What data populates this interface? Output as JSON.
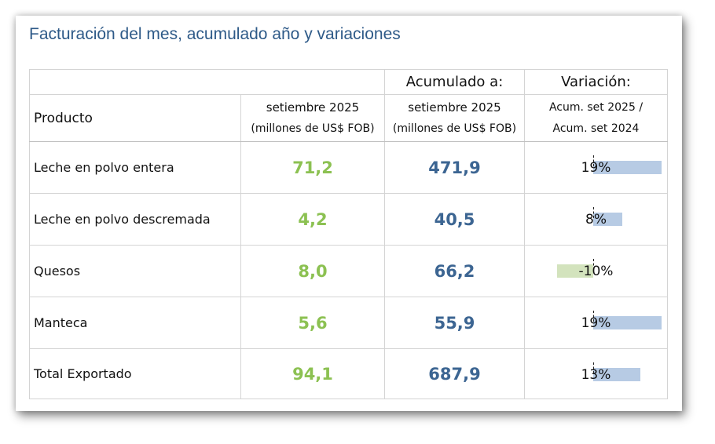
{
  "title": "Facturación del mes, acumulado año y variaciones",
  "header": {
    "acumulado": "Acumulado a:",
    "variacion": "Variación:",
    "producto": "Producto",
    "mes_line1": "setiembre 2025",
    "mes_line2": "(millones de US$ FOB)",
    "acum_line1": "setiembre 2025",
    "acum_line2": "(millones de US$ FOB)",
    "var_line1": "Acum. set 2025 /",
    "var_line2": "Acum. set 2024"
  },
  "rows": [
    {
      "producto": "Leche en polvo entera",
      "mes": "71,2",
      "acumulado": "471,9",
      "variacion": "19%",
      "variacion_value": 19
    },
    {
      "producto": "Leche en polvo descremada",
      "mes": "4,2",
      "acumulado": "40,5",
      "variacion": "8%",
      "variacion_value": 8
    },
    {
      "producto": "Quesos",
      "mes": "8,0",
      "acumulado": "66,2",
      "variacion": "-10%",
      "variacion_value": -10
    },
    {
      "producto": "Manteca",
      "mes": "5,6",
      "acumulado": "55,9",
      "variacion": "19%",
      "variacion_value": 19
    },
    {
      "producto": "Total Exportado",
      "mes": "94,1",
      "acumulado": "687,9",
      "variacion": "13%",
      "variacion_value": 13
    }
  ],
  "colors": {
    "title": "#2e5a88",
    "mes_values": "#8cc152",
    "acumulado_values": "#3c6592",
    "bar_positive": "#b7cbe4",
    "bar_negative": "#d3e3bd"
  }
}
